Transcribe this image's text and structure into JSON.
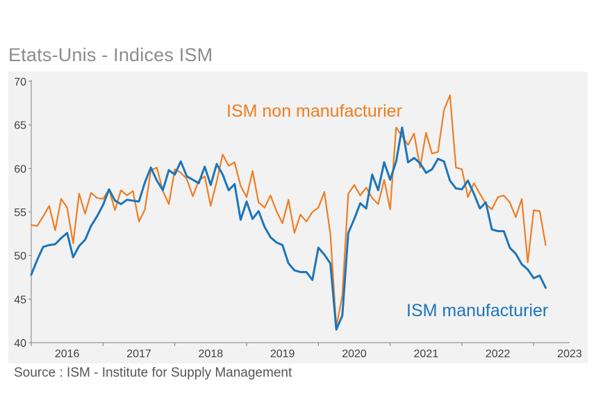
{
  "title": "Etats-Unis - Indices ISM",
  "source": "Source : ISM - Institute for Supply Management",
  "colors": {
    "manufacturier": "#1b75bb",
    "non_manufacturier": "#ef7d22",
    "axis": "#7f7f7f",
    "tick_text": "#404040",
    "background": "#f2f2f2"
  },
  "chart_data": {
    "type": "line",
    "title": "Etats-Unis - Indices ISM",
    "xlabel": "",
    "ylabel": "",
    "ylim": [
      40,
      70
    ],
    "yticks": [
      40,
      45,
      50,
      55,
      60,
      65,
      70
    ],
    "xlim": [
      2016.0,
      2023.5
    ],
    "x_tick_labels": [
      "2016",
      "2017",
      "2018",
      "2019",
      "2020",
      "2021",
      "2022",
      "2023"
    ],
    "x_tick_positions": [
      2016.5,
      2017.5,
      2018.5,
      2019.5,
      2020.5,
      2021.5,
      2022.5,
      2023.5
    ],
    "x_start": 2016.0,
    "x_step": 0.0833333,
    "grid": false,
    "series": [
      {
        "name": "ISM manufacturier",
        "label": "ISM manufacturier",
        "color": "#1b75bb",
        "values": [
          47.8,
          49.5,
          51.0,
          51.2,
          51.3,
          52.0,
          52.6,
          49.8,
          51.1,
          51.8,
          53.4,
          54.5,
          55.8,
          57.6,
          56.3,
          55.9,
          56.4,
          56.3,
          56.2,
          58.4,
          60.1,
          58.6,
          57.5,
          59.8,
          59.3,
          60.8,
          59.1,
          58.7,
          58.3,
          60.2,
          58.1,
          60.5,
          59.3,
          57.5,
          58.2,
          54.1,
          56.2,
          54.2,
          55.1,
          53.3,
          52.1,
          51.5,
          51.2,
          49.1,
          48.3,
          48.1,
          48.1,
          47.2,
          50.9,
          50.1,
          49.1,
          41.5,
          43.1,
          52.6,
          54.2,
          56.0,
          55.4,
          59.3,
          57.5,
          60.7,
          58.7,
          60.8,
          64.7,
          60.7,
          61.2,
          60.6,
          59.5,
          59.9,
          61.1,
          60.8,
          58.6,
          57.7,
          57.6,
          58.6,
          57.1,
          55.4,
          56.1,
          53.0,
          52.8,
          52.8,
          50.9,
          50.2,
          49.0,
          48.4,
          47.4,
          47.7,
          46.3
        ]
      },
      {
        "name": "ISM non manufacturier",
        "label": "ISM non manufacturier",
        "color": "#ef7d22",
        "values": [
          53.5,
          53.4,
          54.5,
          55.7,
          52.9,
          56.5,
          55.5,
          51.4,
          57.1,
          54.8,
          57.2,
          56.6,
          56.5,
          57.6,
          55.2,
          57.5,
          56.9,
          57.4,
          53.9,
          55.3,
          59.8,
          60.1,
          57.4,
          55.9,
          59.9,
          59.5,
          58.8,
          56.8,
          58.6,
          59.1,
          55.7,
          58.5,
          61.6,
          60.3,
          60.7,
          58.0,
          56.7,
          59.7,
          56.1,
          55.5,
          56.9,
          55.1,
          53.7,
          56.4,
          52.6,
          54.7,
          53.9,
          55.0,
          55.5,
          57.3,
          52.5,
          41.8,
          45.4,
          57.1,
          58.1,
          56.9,
          57.8,
          56.6,
          55.9,
          58.7,
          55.3,
          64.7,
          63.7,
          62.7,
          64.0,
          60.1,
          64.1,
          61.7,
          61.9,
          66.7,
          68.4,
          60.1,
          59.9,
          56.7,
          58.3,
          57.1,
          55.9,
          55.3,
          56.7,
          56.9,
          56.1,
          54.4,
          56.5,
          49.2,
          55.2,
          55.1,
          51.2
        ]
      }
    ],
    "annotations": [
      {
        "text": "ISM non manufacturier",
        "series": "non_manufacturier"
      },
      {
        "text": "ISM manufacturier",
        "series": "manufacturier"
      }
    ]
  }
}
